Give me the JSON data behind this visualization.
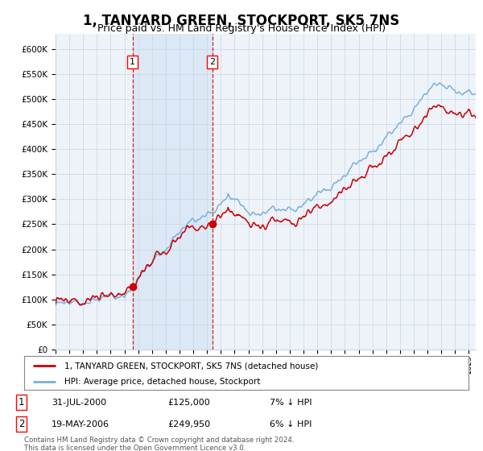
{
  "title": "1, TANYARD GREEN, STOCKPORT, SK5 7NS",
  "subtitle": "Price paid vs. HM Land Registry's House Price Index (HPI)",
  "title_fontsize": 12,
  "subtitle_fontsize": 9,
  "ylabel_ticks": [
    "£0",
    "£50K",
    "£100K",
    "£150K",
    "£200K",
    "£250K",
    "£300K",
    "£350K",
    "£400K",
    "£450K",
    "£500K",
    "£550K",
    "£600K"
  ],
  "ytick_values": [
    0,
    50000,
    100000,
    150000,
    200000,
    250000,
    300000,
    350000,
    400000,
    450000,
    500000,
    550000,
    600000
  ],
  "ylim": [
    0,
    630000
  ],
  "xlim_start": 1995.0,
  "xlim_end": 2025.5,
  "xtick_years": [
    1995,
    1996,
    1997,
    1998,
    1999,
    2000,
    2001,
    2002,
    2003,
    2004,
    2005,
    2006,
    2007,
    2008,
    2009,
    2010,
    2011,
    2012,
    2013,
    2014,
    2015,
    2016,
    2017,
    2018,
    2019,
    2020,
    2021,
    2022,
    2023,
    2024,
    2025
  ],
  "hpi_color": "#7ab0dc",
  "price_color": "#cc0000",
  "background_color": "#ffffff",
  "plot_bg_color": "#eef3fa",
  "shade_color": "#dce8f5",
  "grid_color": "#c8d4e0",
  "purchase1_date": 2000.58,
  "purchase1_price": 125000,
  "purchase2_date": 2006.38,
  "purchase2_price": 249950,
  "legend_line1": "1, TANYARD GREEN, STOCKPORT, SK5 7NS (detached house)",
  "legend_line2": "HPI: Average price, detached house, Stockport",
  "table_row1_num": "1",
  "table_row1_date": "31-JUL-2000",
  "table_row1_price": "£125,000",
  "table_row1_hpi": "7% ↓ HPI",
  "table_row2_num": "2",
  "table_row2_date": "19-MAY-2006",
  "table_row2_price": "£249,950",
  "table_row2_hpi": "6% ↓ HPI",
  "footer": "Contains HM Land Registry data © Crown copyright and database right 2024.\nThis data is licensed under the Open Government Licence v3.0."
}
